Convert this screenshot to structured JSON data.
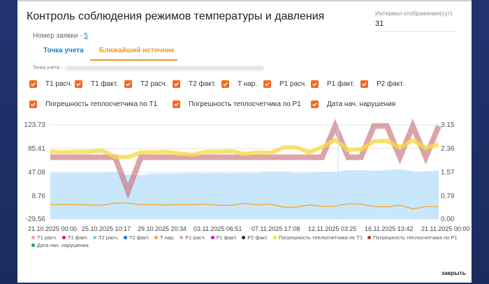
{
  "dialog": {
    "title": "Контроль соблюдения режимов температуры и давления",
    "request": {
      "label": "Номер заявки - ",
      "value": "5"
    },
    "interval": {
      "label": "Интервал отображения(сут)",
      "value": "31"
    },
    "tabs": [
      {
        "label": "Точка учета",
        "active": false
      },
      {
        "label": "Ближайший источник",
        "active": true
      }
    ],
    "point_label": "Точка учёта -",
    "close_label": "закрыть"
  },
  "checkboxes": [
    {
      "label": "T1 расч.",
      "checked": true
    },
    {
      "label": "T1 факт.",
      "checked": true
    },
    {
      "label": "T2 расч.",
      "checked": true
    },
    {
      "label": "T2 факт.",
      "checked": true
    },
    {
      "label": "T нар.",
      "checked": true
    },
    {
      "label": "P1 расч.",
      "checked": true
    },
    {
      "label": "P1 факт.",
      "checked": true
    },
    {
      "label": "P2 факт.",
      "checked": true
    },
    {
      "label": "Погрешность теплосчетчика по T1",
      "checked": true
    },
    {
      "label": "Погрешность теплосчетчика по P1",
      "checked": true
    },
    {
      "label": "Дата нач. нарушения",
      "checked": true
    }
  ],
  "colors": {
    "accent": "#f36b21",
    "tab_active": "#f39a1f",
    "link": "#1a82c4"
  },
  "chart_data": {
    "type": "line",
    "title": "",
    "y_left_ticks": [
      "123.73",
      "85.41",
      "47.08",
      "8.76",
      "-29.56"
    ],
    "y_right_ticks": [
      "3.15",
      "2.36",
      "1.57",
      "0.79",
      "0.00"
    ],
    "ylim_left": [
      -29.56,
      123.73
    ],
    "ylim_right": [
      0.0,
      3.15
    ],
    "x_tick_labels": [
      "21.10.2025 00:00",
      "25.10.2025 10:17",
      "29.10.2025 20:34",
      "03.11.2025 06:51",
      "07.11.2025 17:08",
      "12.11.2025 03:25",
      "16.11.2025 13:42",
      "21.11.2025 00:00"
    ],
    "grid": true,
    "legend_position": "bottom",
    "legend": [
      {
        "name": "T1 расч.",
        "color": "#f4a0a8"
      },
      {
        "name": "T1 факт.",
        "color": "#e8173a"
      },
      {
        "name": "T2 расч.",
        "color": "#80c8f0"
      },
      {
        "name": "T2 факт.",
        "color": "#1a6fe0"
      },
      {
        "name": "T нар.",
        "color": "#f5a623"
      },
      {
        "name": "P1 расч.",
        "color": "#e0a0e0"
      },
      {
        "name": "P1 факт.",
        "color": "#d010d0"
      },
      {
        "name": "P2 факт.",
        "color": "#3a1a10"
      },
      {
        "name": "Погрешность теплосчетчика по T1",
        "color": "#f5e616"
      },
      {
        "name": "Погрешность теплосчетчика по P1",
        "color": "#a0432a"
      },
      {
        "name": "Дата нач. нарушения",
        "color": "#1aa84a"
      }
    ],
    "series": [
      {
        "name": "T2 расч. (area)",
        "axis": "left",
        "values": [
          46,
          46,
          46,
          46,
          46,
          47,
          43,
          42,
          45,
          45,
          45,
          46,
          45,
          46,
          45,
          46,
          45,
          48,
          48,
          45,
          46,
          47,
          47,
          50,
          50,
          49,
          50,
          52,
          48,
          48,
          50
        ]
      },
      {
        "name": "T нар.",
        "axis": "left",
        "values": [
          -6,
          -5.5,
          -6,
          -6.5,
          -7,
          -3.5,
          -3.5,
          -6,
          -6,
          -6.5,
          -6,
          -6,
          -5,
          -7,
          -7,
          -4,
          -6.5,
          -5,
          -10,
          -10,
          -6.5,
          -9,
          -8.5,
          -4.5,
          -5,
          -9,
          -9.5,
          -7,
          -13,
          -9,
          -9
        ]
      },
      {
        "name": "Погрешность теплосчетчика по T1",
        "axis": "left",
        "values": [
          80,
          79,
          80,
          80,
          82,
          72,
          71,
          79,
          79,
          80,
          77,
          75,
          80,
          80,
          81,
          76,
          79,
          78,
          87,
          87,
          79,
          88,
          99,
          83,
          84,
          97,
          98,
          87,
          99,
          86,
          92
        ]
      },
      {
        "name": "Погрешность теплосчетчика по P1",
        "axis": "left",
        "values": [
          71,
          71,
          71,
          71,
          71,
          71,
          16,
          71,
          71,
          71,
          71,
          71,
          71,
          71,
          71,
          71,
          71,
          71,
          71,
          71,
          71,
          71,
          122,
          71,
          71,
          122,
          122,
          71,
          122,
          71,
          122
        ]
      }
    ]
  }
}
